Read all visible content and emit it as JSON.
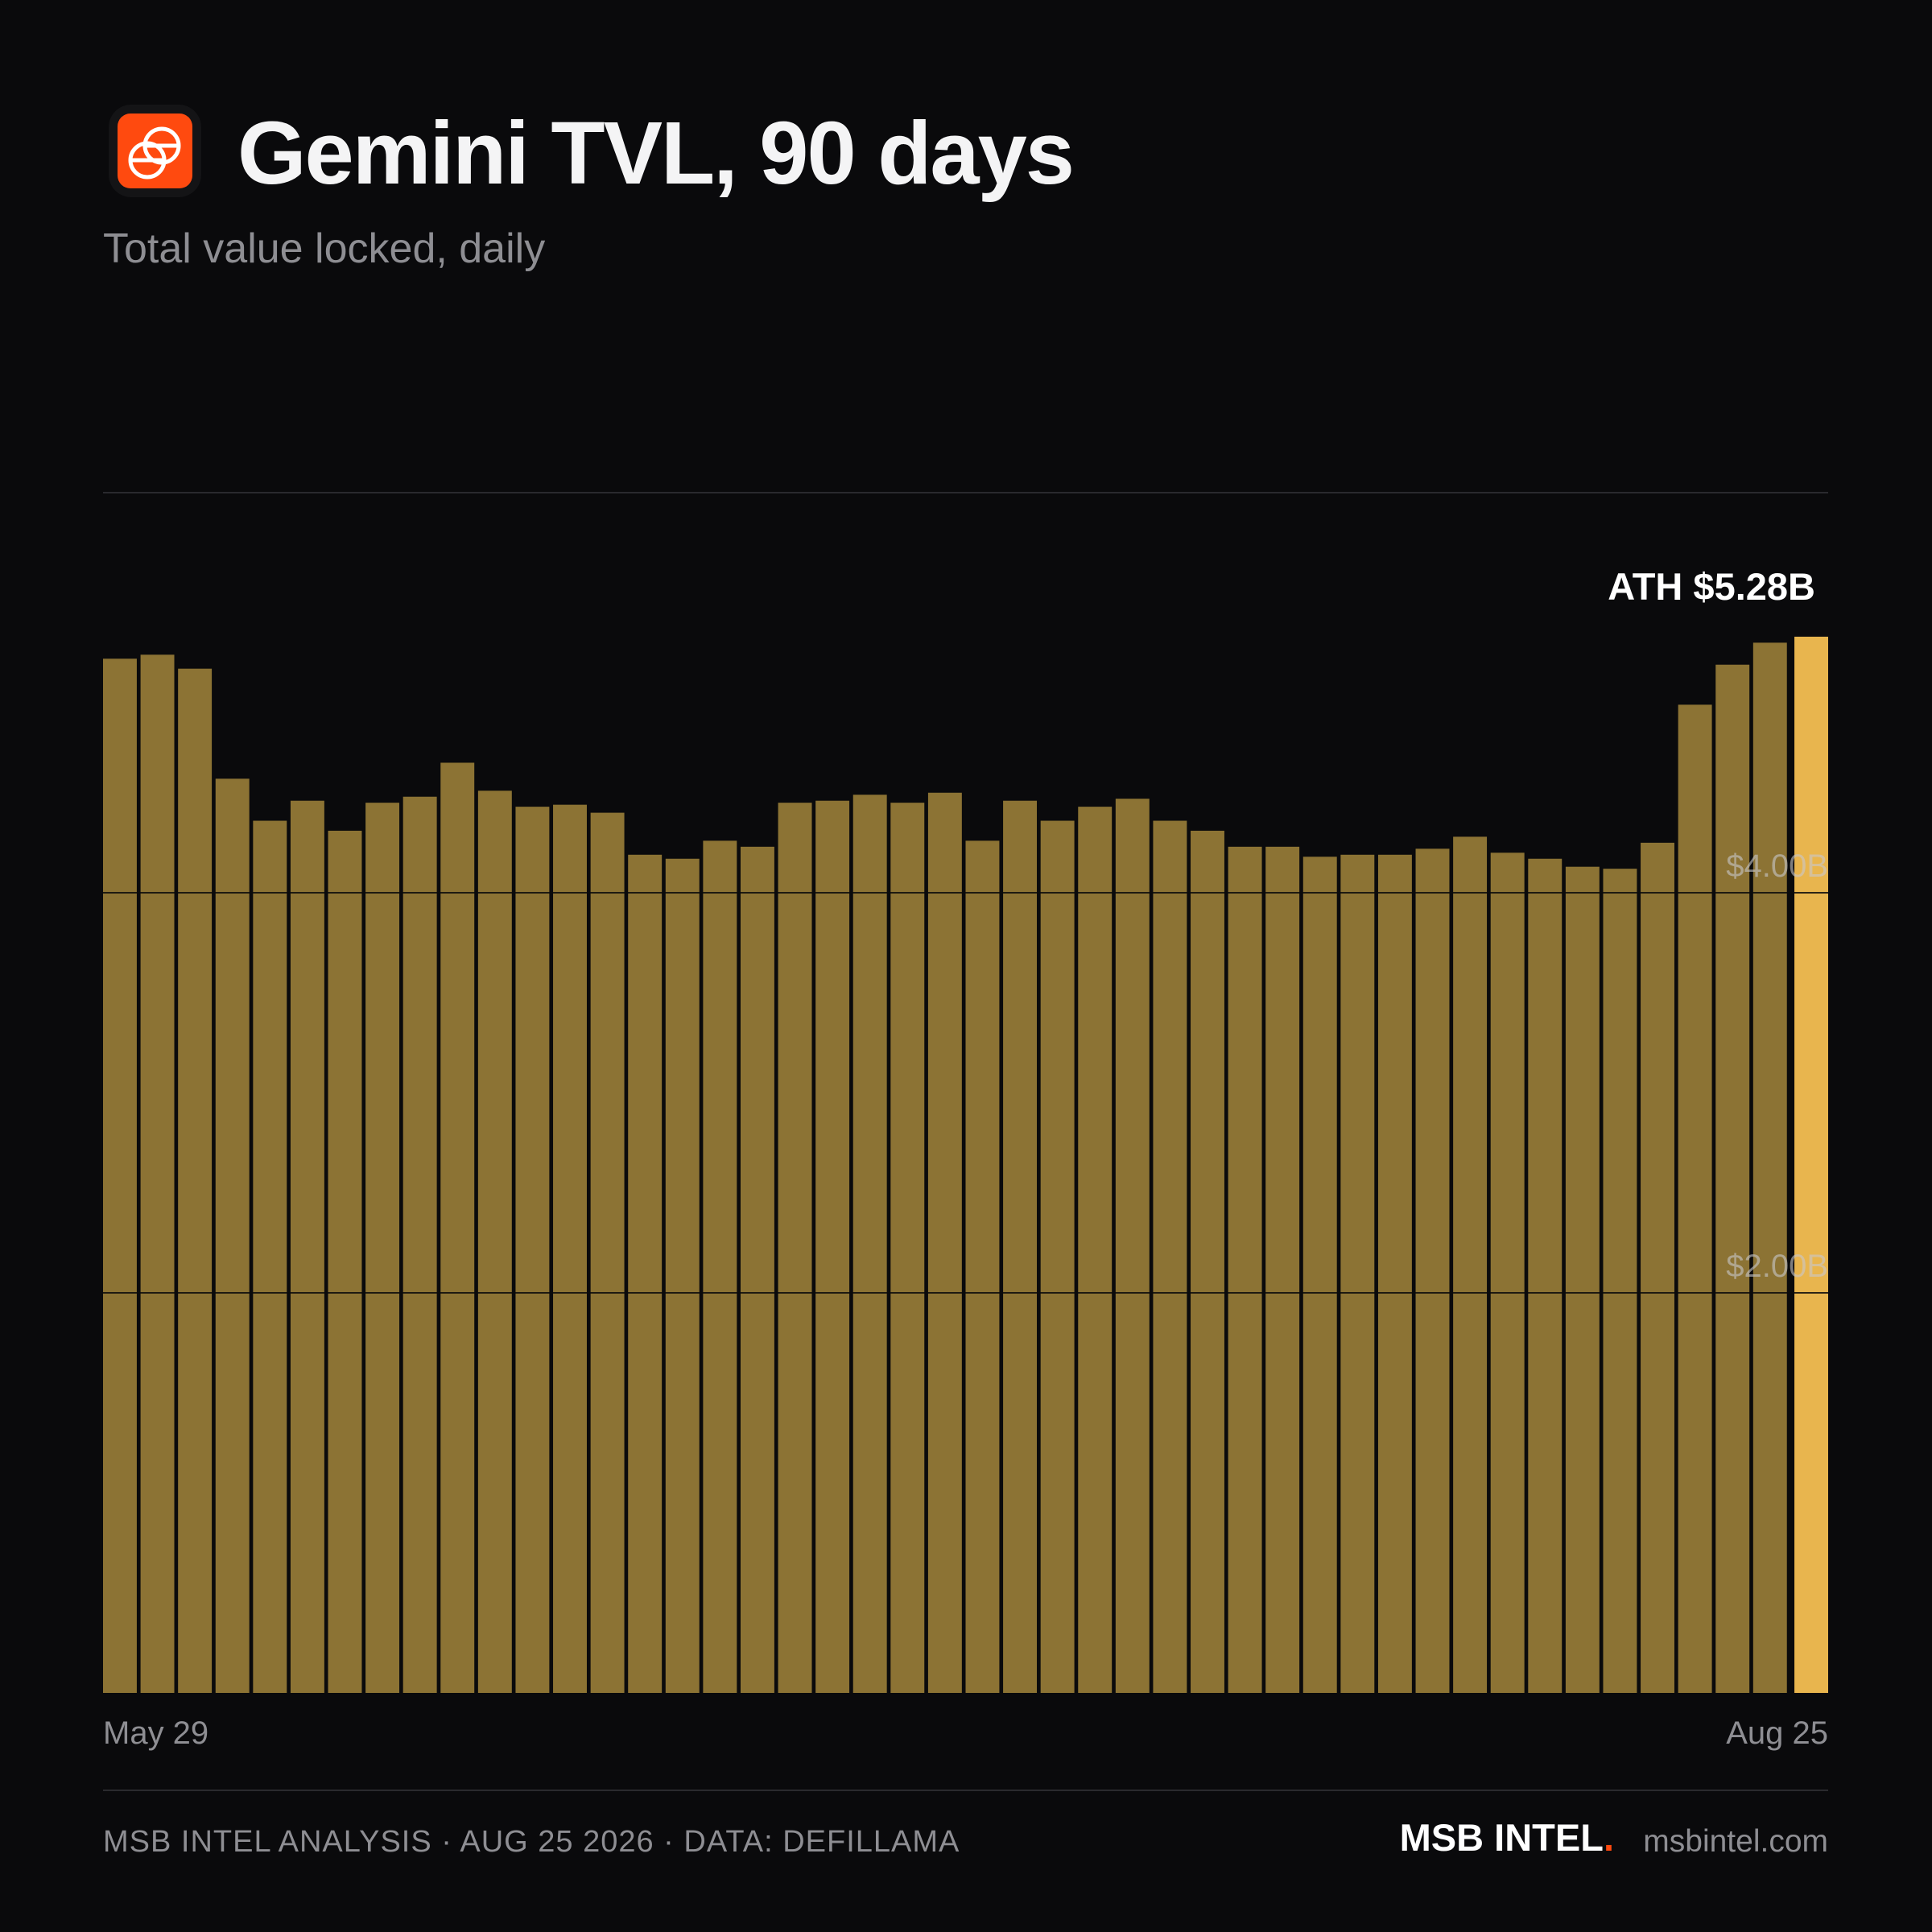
{
  "chart_data": {
    "type": "bar",
    "title": "Gemini TVL, 90 days",
    "subtitle": "Total value locked, daily",
    "annotation": "ATH $5.28B",
    "categories": [
      "May 29",
      null,
      null,
      null,
      null,
      null,
      null,
      null,
      null,
      null,
      null,
      null,
      null,
      null,
      null,
      null,
      null,
      null,
      null,
      null,
      null,
      null,
      null,
      null,
      null,
      null,
      null,
      null,
      null,
      null,
      null,
      null,
      null,
      null,
      null,
      null,
      null,
      null,
      null,
      null,
      null,
      null,
      null,
      null,
      null,
      "Aug 25"
    ],
    "values": [
      5.17,
      5.19,
      5.12,
      4.57,
      4.36,
      4.46,
      4.31,
      4.45,
      4.48,
      4.65,
      4.51,
      4.43,
      4.44,
      4.4,
      4.19,
      4.17,
      4.26,
      4.23,
      4.45,
      4.46,
      4.49,
      4.45,
      4.5,
      4.26,
      4.46,
      4.36,
      4.43,
      4.47,
      4.36,
      4.31,
      4.23,
      4.23,
      4.18,
      4.19,
      4.19,
      4.22,
      4.28,
      4.2,
      4.17,
      4.13,
      4.12,
      4.25,
      4.94,
      5.14,
      5.25,
      5.28
    ],
    "color": "#8c7334",
    "highlight_color": "#e8b54e",
    "ylim": [
      0,
      6
    ],
    "yticks": [
      {
        "value": 2,
        "label": "$2.00B"
      },
      {
        "value": 4,
        "label": "$4.00B"
      }
    ],
    "grid": true
  },
  "footer": {
    "source": "MSB INTEL ANALYSIS · AUG 25 2026 · DATA: DEFILLAMA",
    "brand": "MSB INTEL",
    "brand_mark": ".",
    "url": "msbintel.com"
  }
}
